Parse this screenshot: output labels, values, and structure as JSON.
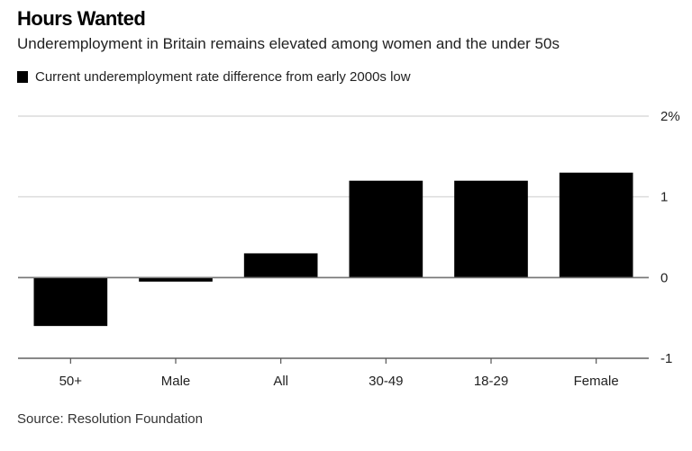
{
  "header": {
    "title": "Hours Wanted",
    "subtitle": "Underemployment in Britain remains elevated among women and the under 50s"
  },
  "footer": {
    "source": "Source: Resolution Foundation"
  },
  "chart_data": {
    "type": "bar",
    "title": "Hours Wanted",
    "subtitle": "Underemployment in Britain remains elevated among women and the under 50s",
    "xlabel": "",
    "ylabel": "",
    "categories": [
      "50+",
      "Male",
      "All",
      "30-49",
      "18-29",
      "Female"
    ],
    "series": [
      {
        "name": "Current underemployment rate difference from early 2000s low",
        "color": "#000000",
        "values": [
          -0.6,
          -0.05,
          0.3,
          1.2,
          1.2,
          1.3
        ]
      }
    ],
    "ylim": [
      -1,
      2
    ],
    "yticks": [
      2,
      1,
      0,
      -1
    ],
    "ytick_labels": [
      "2%",
      "1",
      "0",
      "-1"
    ],
    "y_axis_side": "right",
    "grid": true,
    "legend": "top-left",
    "source": "Source: Resolution Foundation"
  }
}
